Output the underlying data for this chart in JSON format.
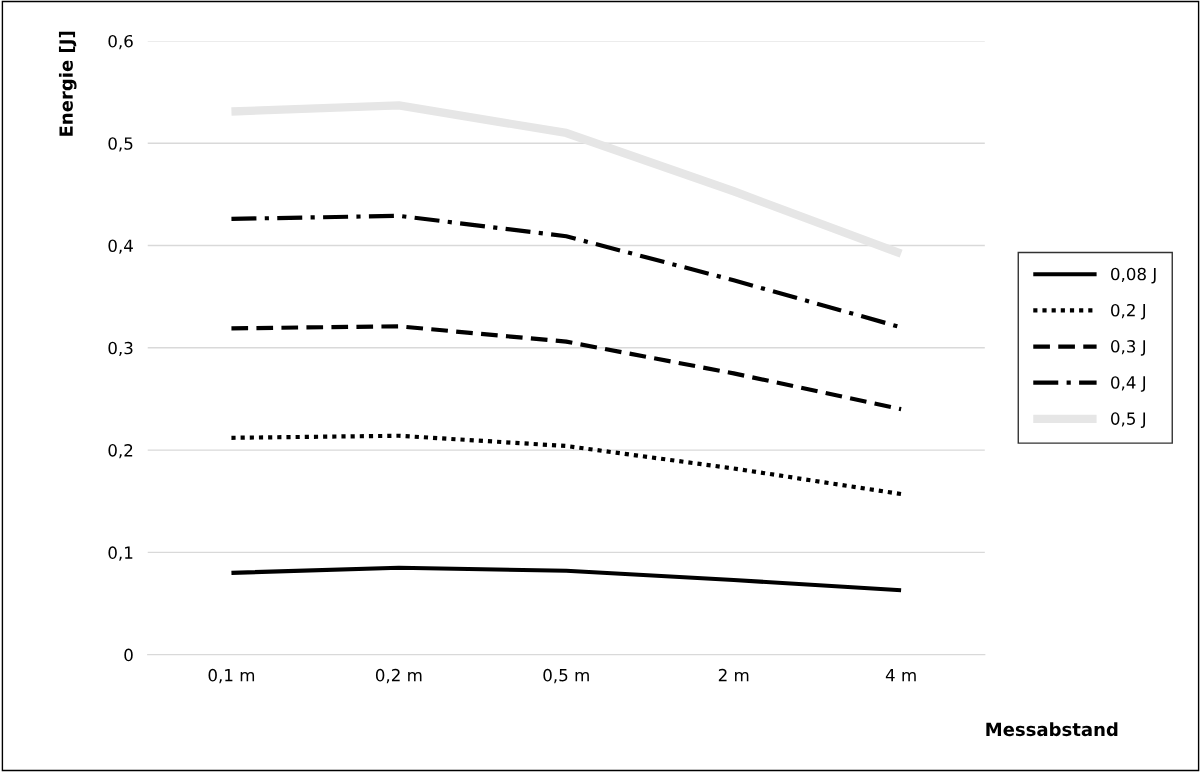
{
  "chart_data": {
    "type": "line",
    "xlabel": "Messabstand",
    "ylabel": "Energie [J]",
    "categories": [
      "0,1 m",
      "0,2 m",
      "0,5 m",
      "2 m",
      "4 m"
    ],
    "series": [
      {
        "name": "0,08 J",
        "color": "#000000",
        "line_style": "solid",
        "values": [
          0.08,
          0.085,
          0.082,
          0.073,
          0.063
        ]
      },
      {
        "name": "0,2 J",
        "color": "#000000",
        "line_style": "dotted",
        "values": [
          0.212,
          0.214,
          0.204,
          0.182,
          0.157
        ]
      },
      {
        "name": "0,3 J",
        "color": "#000000",
        "line_style": "dashed",
        "values": [
          0.319,
          0.321,
          0.306,
          0.275,
          0.24
        ]
      },
      {
        "name": "0,4 J",
        "color": "#000000",
        "line_style": "dashdot",
        "values": [
          0.426,
          0.429,
          0.409,
          0.366,
          0.32
        ]
      },
      {
        "name": "0,5 J",
        "color": "#e6e6e6",
        "line_style": "solid",
        "values": [
          0.531,
          0.537,
          0.51,
          0.453,
          0.392
        ]
      }
    ],
    "ylim": [
      0,
      0.6
    ],
    "yticks": [
      {
        "value": 0,
        "label": "0"
      },
      {
        "value": 0.1,
        "label": "0,1"
      },
      {
        "value": 0.2,
        "label": "0,2"
      },
      {
        "value": 0.3,
        "label": "0,3"
      },
      {
        "value": 0.4,
        "label": "0,4"
      },
      {
        "value": 0.5,
        "label": "0,5"
      },
      {
        "value": 0.6,
        "label": "0,6"
      }
    ],
    "grid": "y",
    "legend": "right",
    "marker": "none"
  }
}
